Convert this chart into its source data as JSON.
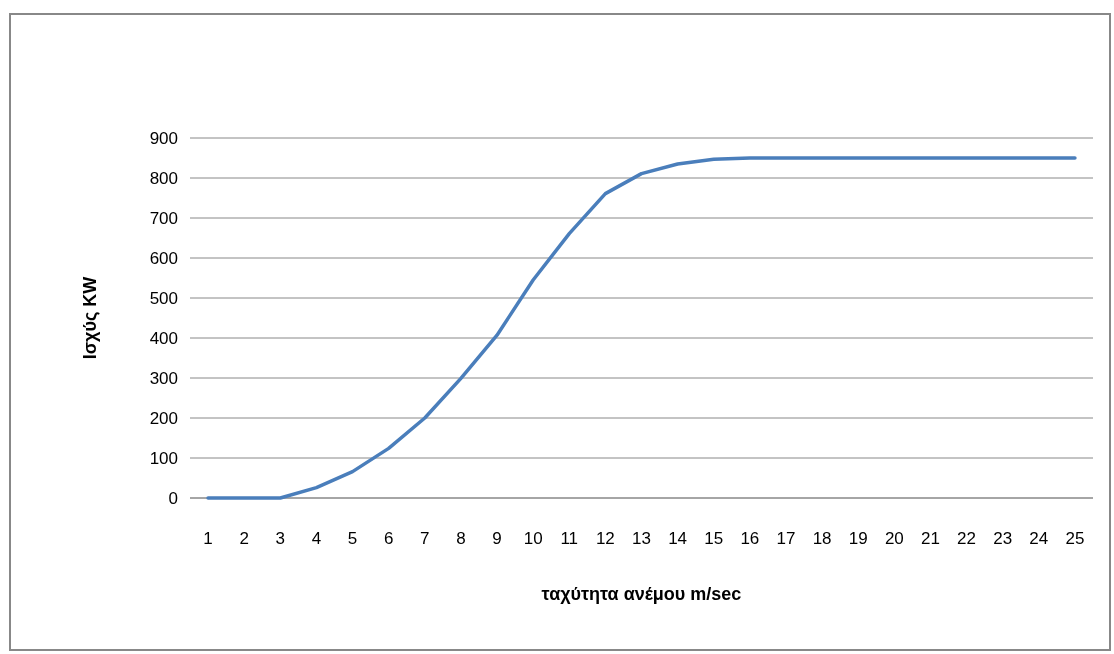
{
  "chart_data": {
    "type": "line",
    "xlabel": "ταχύτητα ανέμου m/sec",
    "ylabel": "Ισχύς KW",
    "x": [
      1,
      2,
      3,
      4,
      5,
      6,
      7,
      8,
      9,
      10,
      11,
      12,
      13,
      14,
      15,
      16,
      17,
      18,
      19,
      20,
      21,
      22,
      23,
      24,
      25
    ],
    "series": [
      {
        "color": "#4a7ebb",
        "values": [
          0,
          0,
          0,
          26,
          66,
          124,
          200,
          299,
          407,
          545,
          661,
          761,
          811,
          835,
          847,
          850,
          850,
          850,
          850,
          850,
          850,
          850,
          850,
          850,
          850
        ]
      }
    ],
    "xlim": [
      0.5,
      25.5
    ],
    "xticks": [
      1,
      2,
      3,
      4,
      5,
      6,
      7,
      8,
      9,
      10,
      11,
      12,
      13,
      14,
      15,
      16,
      17,
      18,
      19,
      20,
      21,
      22,
      23,
      24,
      25
    ],
    "ylim": [
      0,
      900
    ],
    "yticks": [
      0,
      100,
      200,
      300,
      400,
      500,
      600,
      700,
      800,
      900
    ],
    "grid": "y",
    "marker": "none",
    "line_style": "solid"
  }
}
